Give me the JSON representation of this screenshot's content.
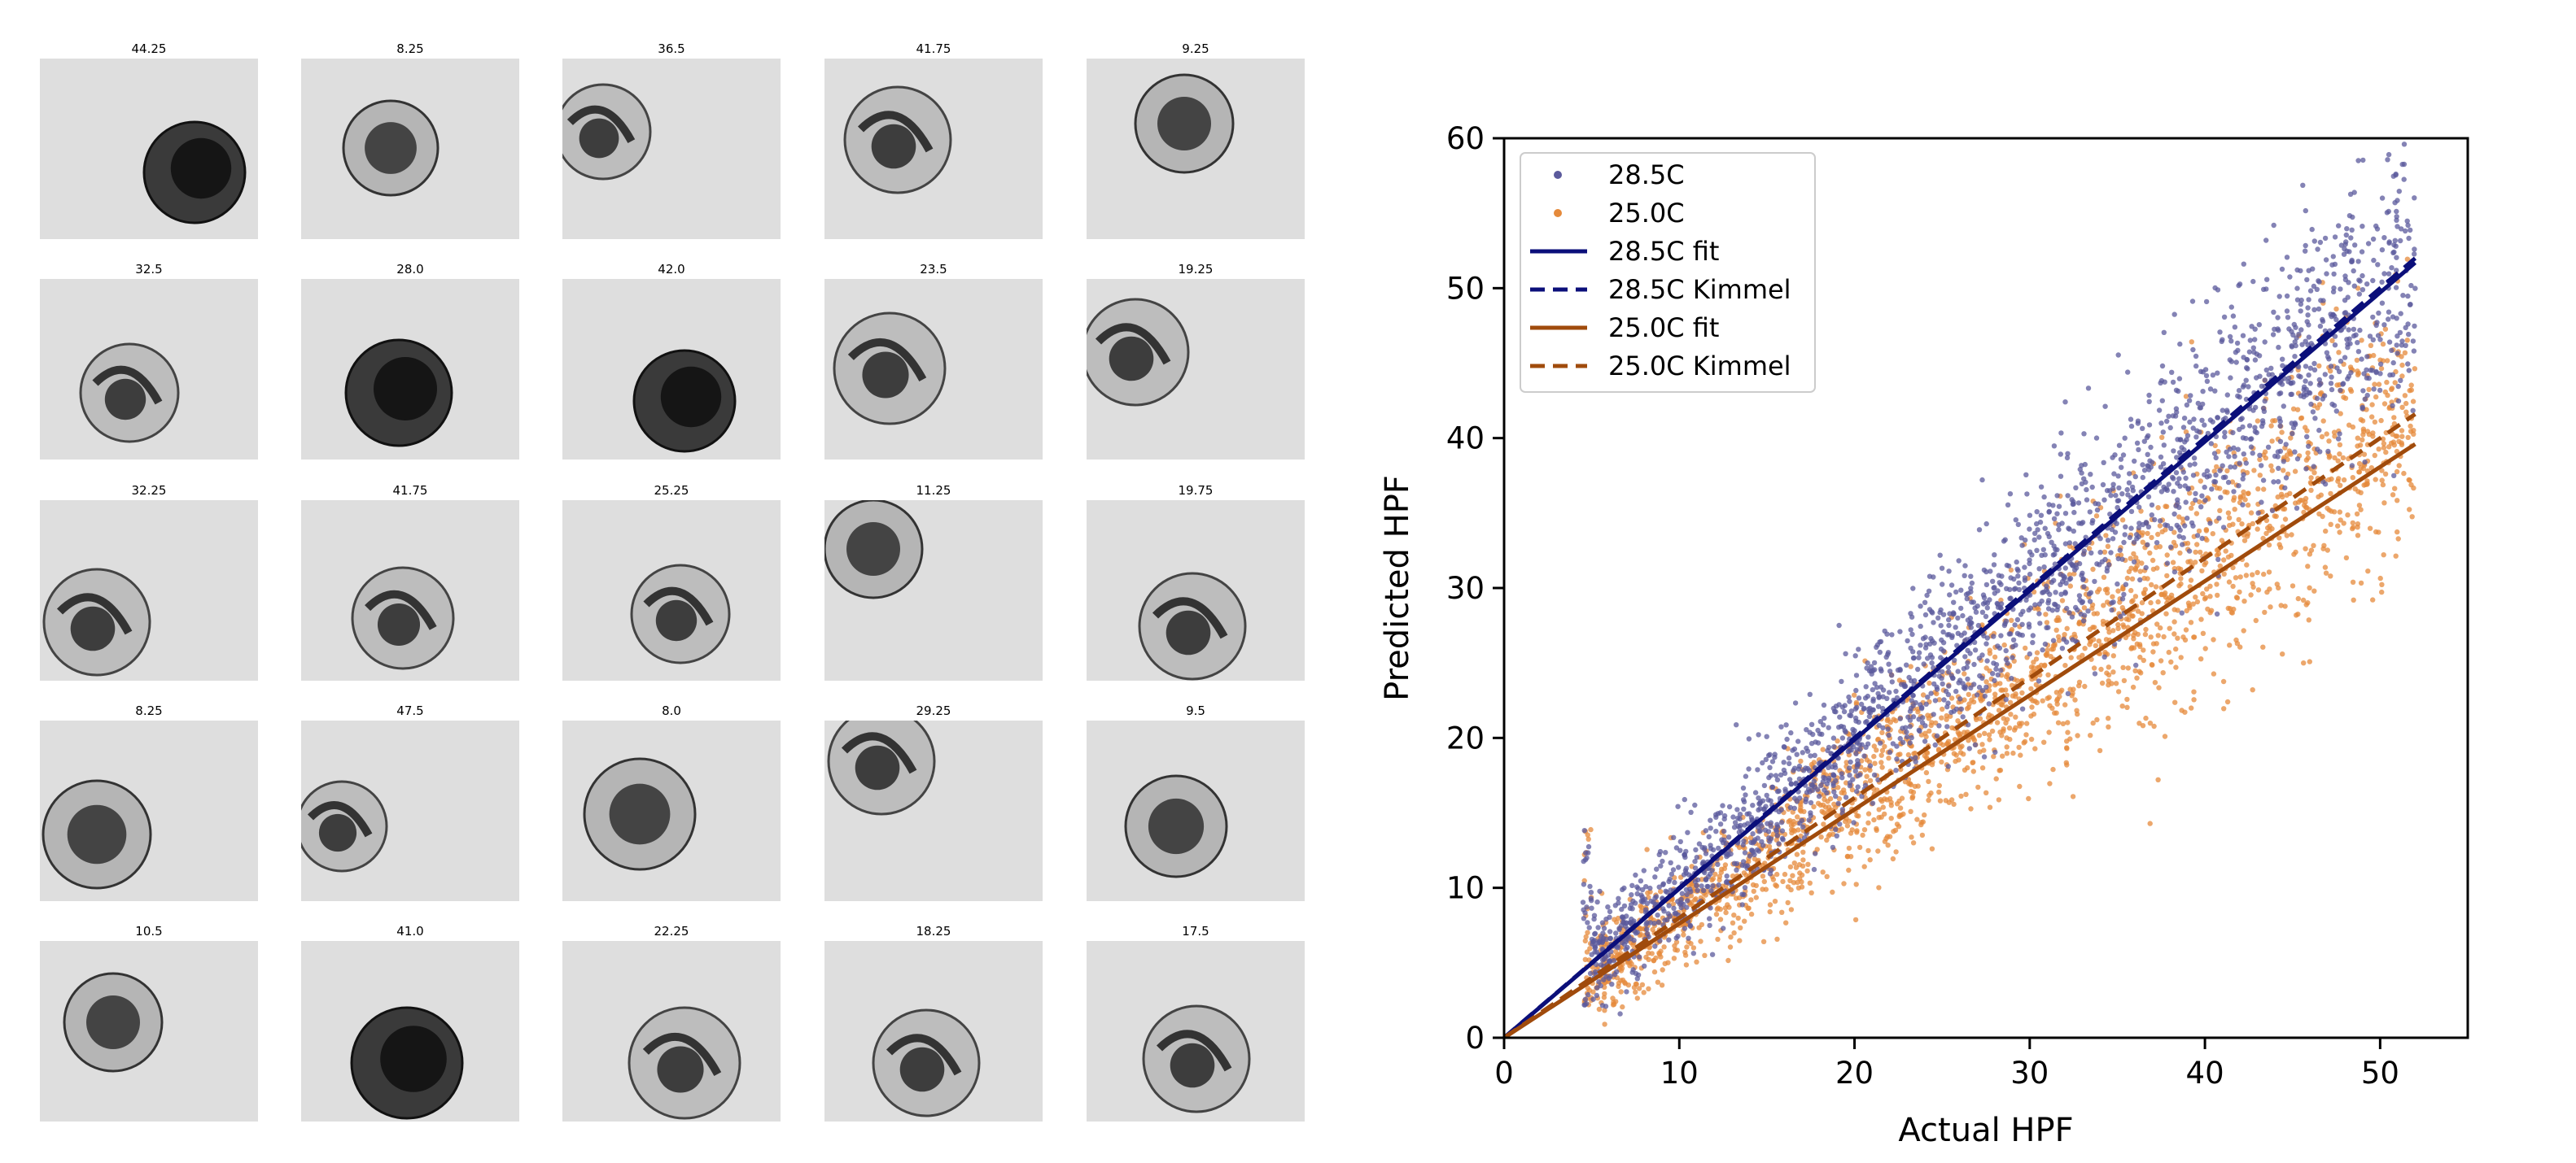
{
  "thumbnails": {
    "labels": [
      "44.25",
      "8.25",
      "36.5",
      "41.75",
      "9.25",
      "32.5",
      "28.0",
      "42.0",
      "23.5",
      "19.25",
      "32.25",
      "41.75",
      "25.25",
      "11.25",
      "19.75",
      "8.25",
      "47.5",
      "8.0",
      "29.25",
      "9.5",
      "10.5",
      "41.0",
      "22.25",
      "18.25",
      "17.5"
    ],
    "columns": 5,
    "rows": 5
  },
  "colors": {
    "series_28": "#5b5a9c",
    "series_25": "#e58a3b",
    "fit_28": "#0b0f7a",
    "fit_25": "#a04b0c"
  },
  "chart_data": {
    "type": "scatter",
    "xlabel": "Actual HPF",
    "ylabel": "Predicted HPF",
    "xlim": [
      0,
      55
    ],
    "ylim": [
      0,
      60
    ],
    "xticks": [
      0,
      10,
      20,
      30,
      40,
      50
    ],
    "yticks": [
      0,
      10,
      20,
      30,
      40,
      50,
      60
    ],
    "grid": false,
    "legend_position": "top-left",
    "x_data_range": [
      4.5,
      52
    ],
    "series": [
      {
        "name": "28.5C",
        "kind": "scatter",
        "color": "#5b5a9c",
        "trend_slope": 1.0,
        "trend_intercept": 0
      },
      {
        "name": "25.0C",
        "kind": "scatter",
        "color": "#e58a3b",
        "trend_slope": 0.8,
        "trend_intercept": 0
      },
      {
        "name": "28.5C fit",
        "kind": "line",
        "style": "solid",
        "color": "#0b0f7a",
        "x": [
          0,
          52
        ],
        "y": [
          0,
          51.7
        ]
      },
      {
        "name": "28.5C Kimmel",
        "kind": "line",
        "style": "dashed",
        "color": "#0b0f7a",
        "x": [
          0,
          52
        ],
        "y": [
          0,
          52
        ]
      },
      {
        "name": "25.0C fit",
        "kind": "line",
        "style": "solid",
        "color": "#a04b0c",
        "x": [
          0,
          52
        ],
        "y": [
          0,
          39.6
        ]
      },
      {
        "name": "25.0C Kimmel",
        "kind": "line",
        "style": "dashed",
        "color": "#a04b0c",
        "x": [
          0,
          52
        ],
        "y": [
          0,
          41.6
        ]
      }
    ]
  }
}
